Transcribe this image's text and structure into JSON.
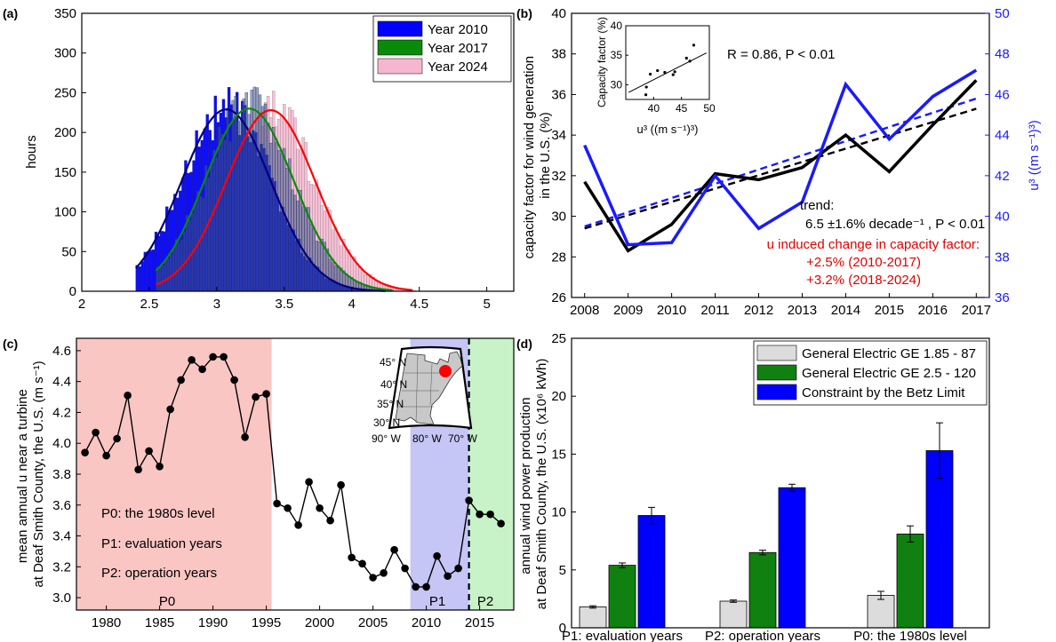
{
  "figure": {
    "panels": [
      {
        "letter": "(a)"
      },
      {
        "letter": "(b)"
      },
      {
        "letter": "(c)"
      },
      {
        "letter": "(d)"
      }
    ]
  },
  "chart_data": [
    {
      "id": "a",
      "type": "bar",
      "subtype": "histogram-with-fitted-curves",
      "ylabel": "hours",
      "xlim": [
        2,
        5.2
      ],
      "ylim": [
        0,
        350
      ],
      "xticks": [
        "2",
        "2.5",
        "3",
        "3.5",
        "4",
        "4.5",
        "5"
      ],
      "yticks": [
        "0",
        "50",
        "100",
        "150",
        "200",
        "250",
        "300",
        "350"
      ],
      "legend": {
        "position": "top-right",
        "entries": [
          {
            "label": "Year 2010",
            "color": "#0000ff"
          },
          {
            "label": "Year 2017",
            "color": "#0a8a0a"
          },
          {
            "label": "Year 2024",
            "color": "#f5b7cf"
          }
        ]
      },
      "series": [
        {
          "name": "Year 2010",
          "color": "#0000ff",
          "fill_color": "#0000ff",
          "curve_color": "#000080",
          "mean": 3.07,
          "sd": 0.33,
          "peak": 229,
          "x_min": 2.4,
          "x_max": 4.25
        },
        {
          "name": "Year 2017",
          "color": "#0a8a0a",
          "fill_color": "#3d5a86",
          "curve_color": "#0a8a0a",
          "mean": 3.24,
          "sd": 0.33,
          "peak": 230,
          "x_min": 2.55,
          "x_max": 4.3
        },
        {
          "name": "Year 2024",
          "color": "#f5b7cf",
          "fill_color": "#f5b7cf",
          "curve_color": "#ff0000",
          "mean": 3.4,
          "sd": 0.33,
          "peak": 228,
          "x_min": 2.55,
          "x_max": 4.45
        }
      ]
    },
    {
      "id": "b",
      "type": "line",
      "ylabel": "capacity factor for wind generation\nin the U.S. (%)",
      "y2label": "u³ ((m s⁻¹)³)",
      "x": [
        2008,
        2009,
        2010,
        2011,
        2012,
        2013,
        2014,
        2015,
        2016,
        2017
      ],
      "xlim": [
        2007.7,
        2017.3
      ],
      "ylim": [
        26,
        40
      ],
      "y2lim": [
        36,
        50
      ],
      "yticks": [
        "26",
        "28",
        "30",
        "32",
        "34",
        "36",
        "38",
        "40"
      ],
      "y2ticks": [
        "36",
        "38",
        "40",
        "42",
        "44",
        "46",
        "48",
        "50"
      ],
      "series": [
        {
          "name": "capacity factor",
          "axis": "left",
          "color": "#000000",
          "values": [
            31.7,
            28.3,
            29.6,
            32.1,
            31.8,
            32.4,
            34.0,
            32.2,
            34.5,
            36.7
          ]
        },
        {
          "name": "u3",
          "axis": "right",
          "color": "#1a1aff",
          "values": [
            43.5,
            38.6,
            38.7,
            42.0,
            39.4,
            40.7,
            46.5,
            43.8,
            45.9,
            47.2
          ]
        }
      ],
      "trends": [
        {
          "axis": "left",
          "color": "#000000",
          "x": [
            2008,
            2017
          ],
          "y": [
            29.4,
            35.3
          ]
        },
        {
          "axis": "right",
          "color": "#1a1aff",
          "x": [
            2008,
            2017
          ],
          "y": [
            39.5,
            45.8
          ]
        }
      ],
      "annotations": {
        "r_text": "R = 0.86, P < 0.01",
        "trend_label": "trend:",
        "trend_value": "6.5 ±1.6% decade⁻¹ , P < 0.01",
        "u_change_title": "u induced change in capacity factor:",
        "u_change_1": "+2.5% (2010-2017)",
        "u_change_2": "+3.2% (2018-2024)"
      },
      "inset": {
        "type": "scatter",
        "ylabel": "Capacity factor (%)",
        "xlabel": "u³ ((m s⁻¹)³)",
        "xlim": [
          35,
          50
        ],
        "ylim": [
          27.5,
          40
        ],
        "xticks": [
          "40",
          "45",
          "50"
        ],
        "yticks": [
          "30",
          "35",
          "40"
        ],
        "points": [
          [
            38.6,
            28.3
          ],
          [
            38.7,
            29.6
          ],
          [
            39.4,
            31.8
          ],
          [
            40.7,
            32.4
          ],
          [
            42.0,
            32.1
          ],
          [
            43.5,
            31.7
          ],
          [
            43.8,
            32.2
          ],
          [
            45.9,
            34.5
          ],
          [
            46.5,
            34.0
          ],
          [
            47.2,
            36.7
          ]
        ],
        "fit": [
          [
            35.5,
            28.7
          ],
          [
            49.5,
            35.4
          ]
        ]
      }
    },
    {
      "id": "c",
      "type": "line",
      "ylabel": "mean annual u near a turbine\nat Deaf Smith County, the U.S. (m s⁻¹)",
      "xlim": [
        1977.2,
        2018.2
      ],
      "ylim": [
        2.92,
        4.68
      ],
      "xticks": [
        "1980",
        "1985",
        "1990",
        "1995",
        "2000",
        "2005",
        "2010",
        "2015"
      ],
      "yticks": [
        "3.0",
        "3.2",
        "3.4",
        "3.6",
        "3.8",
        "4.0",
        "4.2",
        "4.4",
        "4.6"
      ],
      "x": [
        1978,
        1979,
        1980,
        1981,
        1982,
        1983,
        1984,
        1985,
        1986,
        1987,
        1988,
        1989,
        1990,
        1991,
        1992,
        1993,
        1994,
        1995,
        1996,
        1997,
        1998,
        1999,
        2000,
        2001,
        2002,
        2003,
        2004,
        2005,
        2006,
        2007,
        2008,
        2009,
        2010,
        2011,
        2012,
        2013,
        2014,
        2015,
        2016,
        2017
      ],
      "values": [
        3.94,
        4.07,
        3.92,
        4.03,
        4.31,
        3.83,
        3.95,
        3.85,
        4.22,
        4.41,
        4.54,
        4.48,
        4.56,
        4.56,
        4.41,
        4.04,
        4.3,
        4.32,
        3.61,
        3.58,
        3.47,
        3.75,
        3.58,
        3.5,
        3.73,
        3.26,
        3.22,
        3.13,
        3.16,
        3.31,
        3.19,
        3.07,
        3.07,
        3.27,
        3.14,
        3.19,
        3.63,
        3.54,
        3.54,
        3.48
      ],
      "bands": [
        {
          "name": "P0",
          "from": 1977.2,
          "to": 1995.5,
          "color": "#f9c6c4"
        },
        {
          "name": "P1",
          "from": 2008.5,
          "to": 2014,
          "color": "#c5c6f6"
        },
        {
          "name": "P2",
          "from": 2014,
          "to": 2018.2,
          "color": "#c8f2c8"
        }
      ],
      "legend_lines": [
        "P0: the 1980s level",
        "P1: evaluation years",
        "P2: operation years"
      ],
      "band_labels": [
        "P0",
        "P1",
        "P2"
      ],
      "map_labels": {
        "lat": [
          "45° N",
          "40° N",
          "35° N",
          "30° N"
        ],
        "lon": [
          "90° W",
          "80° W",
          "70° W"
        ]
      }
    },
    {
      "id": "d",
      "type": "bar",
      "ylabel": "annual wind power production\nat Deaf Smith County, the U.S. (x10⁶ kWh)",
      "categories": [
        "P1: evaluation years",
        "P2: operation years",
        "P0: the 1980s level"
      ],
      "ylim": [
        0,
        25
      ],
      "yticks": [
        "0",
        "5",
        "10",
        "15",
        "20",
        "25"
      ],
      "legend": {
        "position": "top-right"
      },
      "series": [
        {
          "name": "General Electric GE 1.85 - 87",
          "color": "#dcdcdc",
          "values": [
            1.8,
            2.3,
            2.8
          ],
          "errors": [
            0.1,
            0.1,
            0.35
          ]
        },
        {
          "name": "General Electric GE 2.5 - 120",
          "color": "#108010",
          "values": [
            5.4,
            6.5,
            8.1
          ],
          "errors": [
            0.2,
            0.2,
            0.7
          ]
        },
        {
          "name": "Constraint by the Betz Limit",
          "color": "#0000ff",
          "values": [
            9.7,
            12.1,
            15.3
          ],
          "errors": [
            0.7,
            0.3,
            2.4
          ]
        }
      ]
    }
  ]
}
